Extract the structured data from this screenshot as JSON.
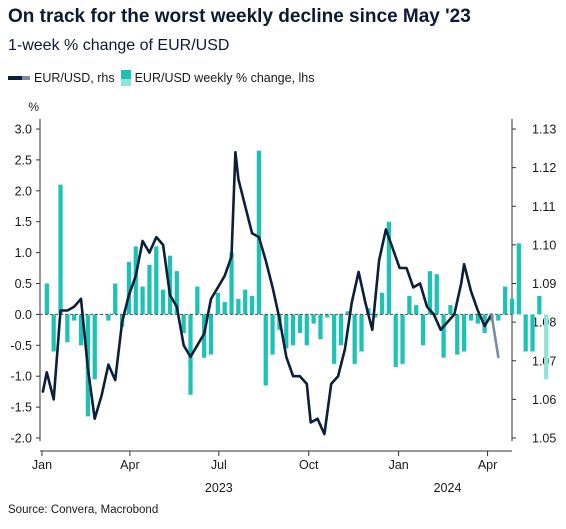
{
  "title": "On track for the worst weekly decline since May '23",
  "subtitle": "1-week % change of EUR/USD",
  "legend": {
    "line_label": "EUR/USD, rhs",
    "bar_label": "EUR/USD weekly % change, lhs"
  },
  "source": "Source: Convera, Macrobond",
  "colors": {
    "line": "#0b1f3a",
    "line_latest": "#7a8aa0",
    "bar": "#1cc2b3",
    "bar_latest": "#8fe3dc",
    "axis": "#333333"
  },
  "chart_data": {
    "type": "bar+line",
    "left_axis": {
      "label": "%",
      "ylim": [
        -2.0,
        3.0
      ],
      "ticks": [
        "-2.0",
        "-1.5",
        "-1.0",
        "-0.5",
        "0.0",
        "0.5",
        "1.0",
        "1.5",
        "2.0",
        "2.5",
        "3.0"
      ]
    },
    "right_axis": {
      "ylim": [
        1.05,
        1.13
      ],
      "ticks": [
        "1.05",
        "1.06",
        "1.07",
        "1.08",
        "1.09",
        "1.10",
        "1.11",
        "1.12",
        "1.13"
      ]
    },
    "x_axis": {
      "start": "2022-12-30",
      "end": "2024-04-26",
      "months": [
        {
          "label": "Jan",
          "date": "2023-01-01"
        },
        {
          "label": "Apr",
          "date": "2023-04-01"
        },
        {
          "label": "Jul",
          "date": "2023-07-01"
        },
        {
          "label": "Oct",
          "date": "2023-10-01"
        },
        {
          "label": "Jan",
          "date": "2024-01-01"
        },
        {
          "label": "Apr",
          "date": "2024-04-01"
        }
      ],
      "years": [
        {
          "label": "2023",
          "date": "2023-07-01"
        },
        {
          "label": "2024",
          "date": "2024-02-20"
        }
      ]
    },
    "series": [
      {
        "name": "EUR/USD weekly % change, lhs",
        "type": "bar",
        "axis": "left",
        "start_date": "2023-01-06",
        "interval_days": 7,
        "values": [
          0.5,
          -0.6,
          2.1,
          -0.45,
          -0.1,
          -0.5,
          -1.65,
          -1.05,
          0.0,
          -0.1,
          0.5,
          -0.2,
          0.85,
          1.1,
          0.45,
          0.8,
          1.1,
          0.4,
          0.95,
          0.7,
          -0.3,
          -1.3,
          0.45,
          -0.7,
          -0.65,
          0.35,
          0.2,
          1.0,
          0.25,
          0.4,
          0.3,
          2.65,
          -1.15,
          -0.65,
          -0.25,
          -0.55,
          -0.5,
          -0.3,
          -0.5,
          -0.15,
          -0.4,
          -0.05,
          -0.8,
          -0.5,
          0.05,
          -0.8,
          -0.6,
          0.1,
          -0.05,
          0.35,
          1.5,
          -0.85,
          -0.8,
          0.3,
          0.15,
          -0.5,
          0.7,
          0.65,
          -0.7,
          0.15,
          -0.65,
          -0.6,
          -0.1,
          -0.15,
          -0.3,
          -0.1,
          -0.1,
          0.45,
          0.25,
          1.15,
          -0.6,
          -0.6,
          0.3,
          -1.05
        ]
      },
      {
        "name": "EUR/USD, rhs",
        "type": "line",
        "axis": "right",
        "points": [
          [
            "2023-01-02",
            1.062
          ],
          [
            "2023-01-06",
            1.067
          ],
          [
            "2023-01-13",
            1.06
          ],
          [
            "2023-01-20",
            1.083
          ],
          [
            "2023-01-27",
            1.083
          ],
          [
            "2023-02-03",
            1.084
          ],
          [
            "2023-02-10",
            1.086
          ],
          [
            "2023-02-17",
            1.068
          ],
          [
            "2023-02-24",
            1.055
          ],
          [
            "2023-03-03",
            1.061
          ],
          [
            "2023-03-10",
            1.069
          ],
          [
            "2023-03-17",
            1.065
          ],
          [
            "2023-03-24",
            1.08
          ],
          [
            "2023-03-31",
            1.087
          ],
          [
            "2023-04-07",
            1.092
          ],
          [
            "2023-04-14",
            1.101
          ],
          [
            "2023-04-21",
            1.098
          ],
          [
            "2023-04-28",
            1.102
          ],
          [
            "2023-05-05",
            1.1
          ],
          [
            "2023-05-12",
            1.087
          ],
          [
            "2023-05-19",
            1.084
          ],
          [
            "2023-05-26",
            1.074
          ],
          [
            "2023-06-02",
            1.071
          ],
          [
            "2023-06-09",
            1.074
          ],
          [
            "2023-06-16",
            1.077
          ],
          [
            "2023-06-23",
            1.086
          ],
          [
            "2023-06-30",
            1.089
          ],
          [
            "2023-07-07",
            1.092
          ],
          [
            "2023-07-14",
            1.097
          ],
          [
            "2023-07-18",
            1.124
          ],
          [
            "2023-07-21",
            1.117
          ],
          [
            "2023-07-28",
            1.11
          ],
          [
            "2023-08-04",
            1.103
          ],
          [
            "2023-08-11",
            1.102
          ],
          [
            "2023-08-18",
            1.096
          ],
          [
            "2023-08-25",
            1.089
          ],
          [
            "2023-09-01",
            1.081
          ],
          [
            "2023-09-08",
            1.071
          ],
          [
            "2023-09-15",
            1.066
          ],
          [
            "2023-09-22",
            1.066
          ],
          [
            "2023-09-29",
            1.064
          ],
          [
            "2023-10-03",
            1.054
          ],
          [
            "2023-10-10",
            1.055
          ],
          [
            "2023-10-17",
            1.051
          ],
          [
            "2023-10-24",
            1.064
          ],
          [
            "2023-10-31",
            1.066
          ],
          [
            "2023-11-07",
            1.073
          ],
          [
            "2023-11-14",
            1.085
          ],
          [
            "2023-11-21",
            1.093
          ],
          [
            "2023-11-28",
            1.085
          ],
          [
            "2023-12-05",
            1.078
          ],
          [
            "2023-12-12",
            1.096
          ],
          [
            "2023-12-19",
            1.104
          ],
          [
            "2023-12-26",
            1.099
          ],
          [
            "2024-01-02",
            1.094
          ],
          [
            "2024-01-09",
            1.094
          ],
          [
            "2024-01-16",
            1.089
          ],
          [
            "2024-01-23",
            1.09
          ],
          [
            "2024-01-30",
            1.084
          ],
          [
            "2024-02-06",
            1.082
          ],
          [
            "2024-02-13",
            1.078
          ],
          [
            "2024-02-20",
            1.08
          ],
          [
            "2024-02-27",
            1.082
          ],
          [
            "2024-03-05",
            1.09
          ],
          [
            "2024-03-08",
            1.095
          ],
          [
            "2024-03-15",
            1.088
          ],
          [
            "2024-03-22",
            1.083
          ],
          [
            "2024-03-29",
            1.079
          ],
          [
            "2024-04-05",
            1.082
          ]
        ],
        "latest_segment": [
          [
            "2024-04-05",
            1.082
          ],
          [
            "2024-04-12",
            1.071
          ]
        ]
      }
    ]
  }
}
